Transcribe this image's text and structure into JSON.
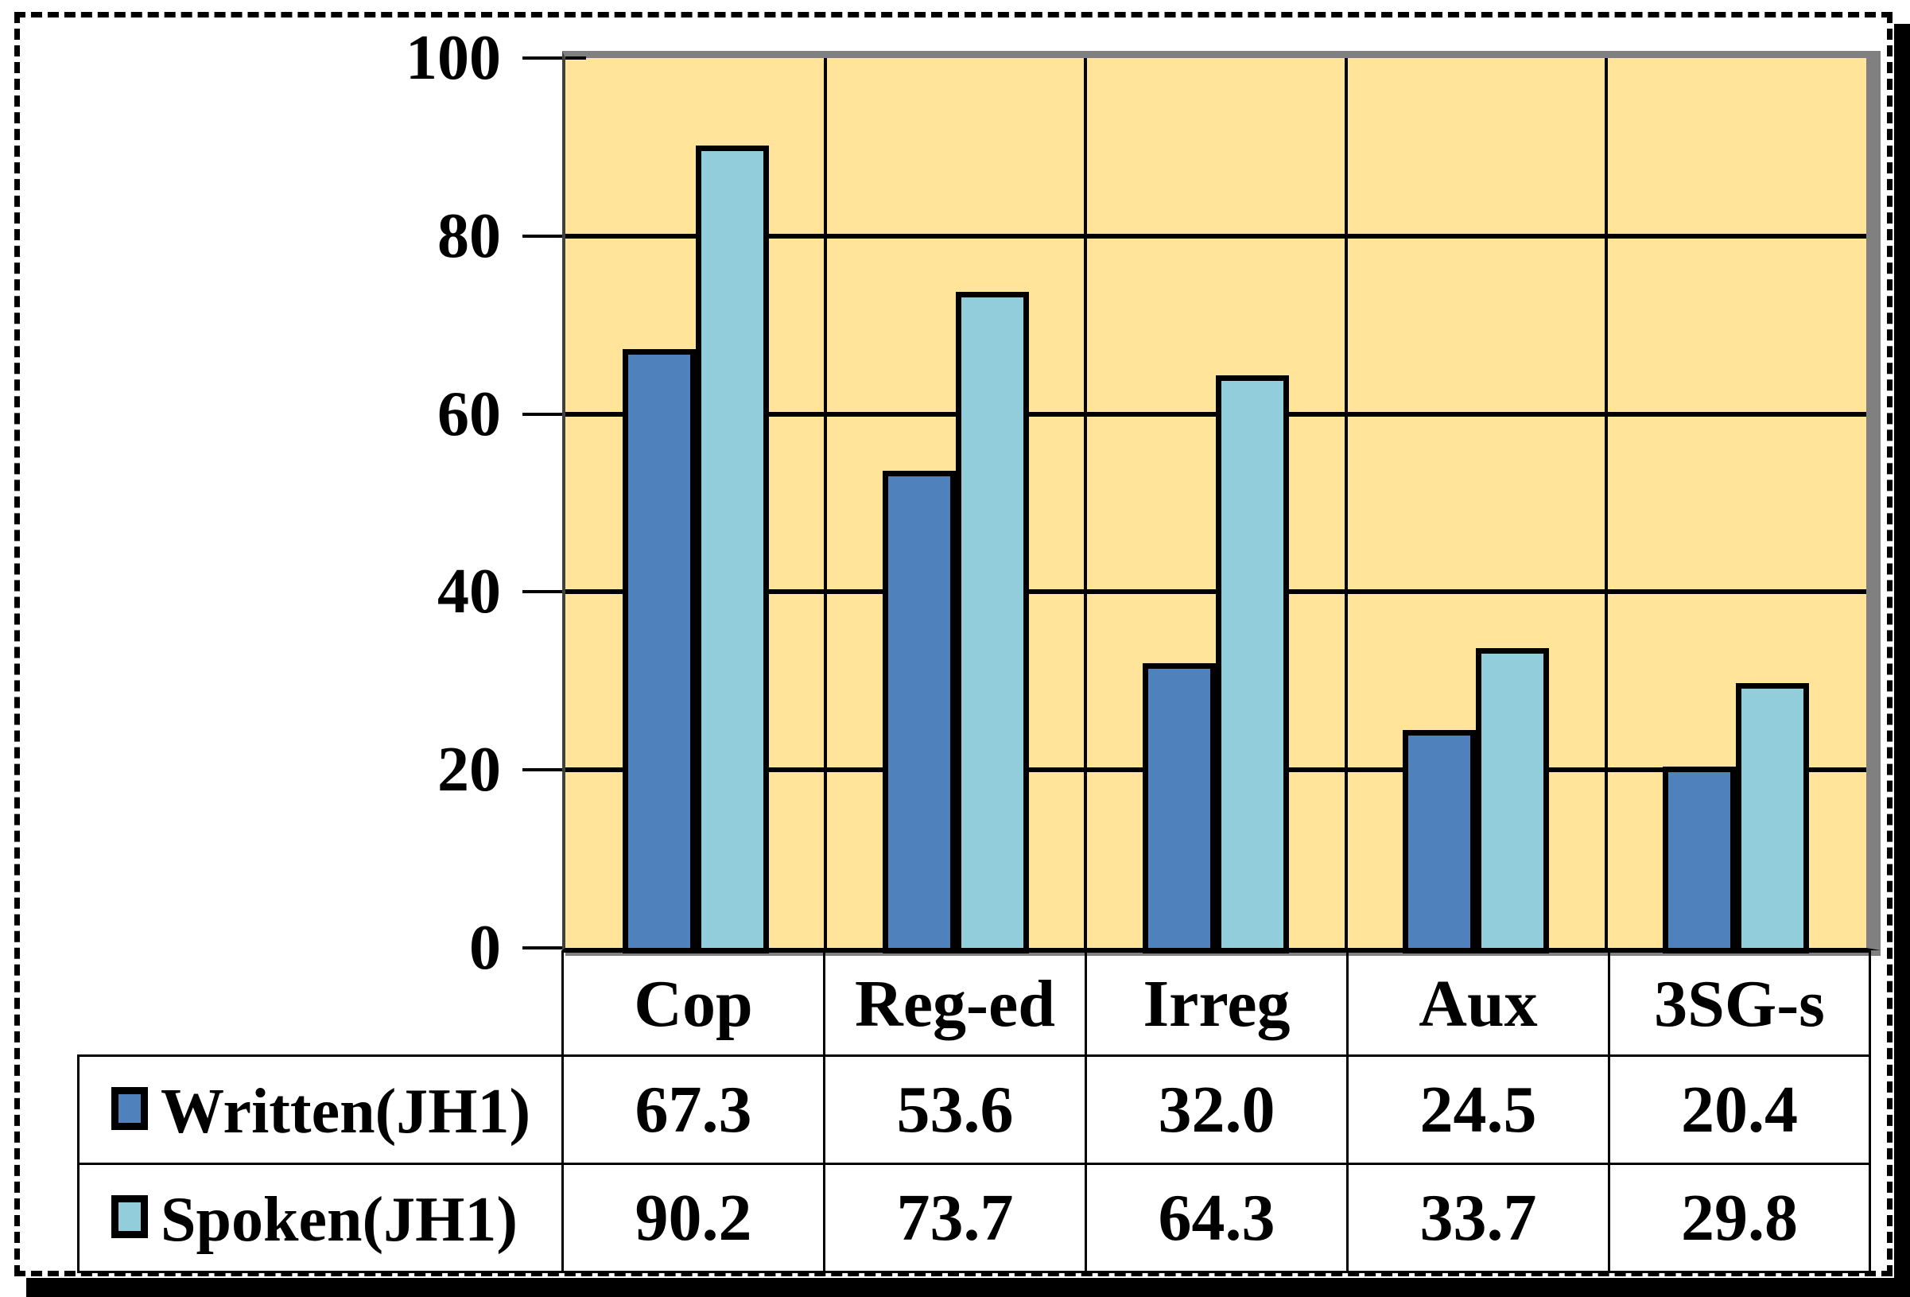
{
  "chart_data": {
    "type": "bar",
    "title": "",
    "xlabel": "",
    "ylabel": "",
    "categories": [
      "Cop",
      "Reg-ed",
      "Irreg",
      "Aux",
      "3SG-s"
    ],
    "series": [
      {
        "name": "Written(JH1)",
        "values": [
          67.3,
          53.6,
          32.0,
          24.5,
          20.4
        ],
        "display": [
          "67.3",
          "53.6",
          "32.0",
          "24.5",
          "20.4"
        ],
        "color": "#4F81BD"
      },
      {
        "name": "Spoken(JH1)",
        "values": [
          90.2,
          73.7,
          64.3,
          33.7,
          29.8
        ],
        "display": [
          "90.2",
          "73.7",
          "64.3",
          "33.7",
          "29.8"
        ],
        "color": "#92CDDC"
      }
    ],
    "ylim": [
      0,
      100
    ],
    "yticks": [
      100,
      80,
      60,
      40,
      20,
      0
    ],
    "ytick_labels": [
      "100",
      "80",
      "60",
      "40",
      "20",
      "0"
    ],
    "grid": true,
    "legend_position": "table-left",
    "plot_background": "#FFE49A",
    "gridline_color": "#000000"
  },
  "colors": {
    "written_bar": "#4F81BD",
    "spoken_bar": "#92CDDC",
    "plot_background": "#FFE49A",
    "plot_frame_gray": "#808080",
    "frame_shadow": "#000000"
  }
}
